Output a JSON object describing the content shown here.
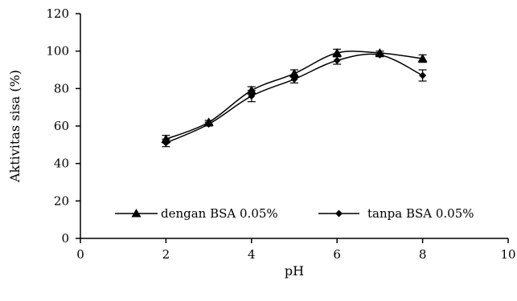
{
  "chart_data": {
    "type": "line",
    "xlabel": "pH",
    "ylabel": "Aktivitas sisa (%)",
    "xlim": [
      0,
      10
    ],
    "ylim": [
      0,
      120
    ],
    "x_ticks": [
      "0",
      "2",
      "4",
      "6",
      "8",
      "10"
    ],
    "y_ticks": [
      "0",
      "20",
      "40",
      "60",
      "80",
      "100",
      "120"
    ],
    "grid": false,
    "legend_position": "bottom",
    "series": [
      {
        "name": "dengan BSA 0.05%",
        "marker": "triangle",
        "color": "#000000",
        "x": [
          2,
          3,
          4,
          5,
          6,
          7,
          8
        ],
        "y": [
          53,
          62,
          79,
          88,
          99,
          99,
          96
        ],
        "error": [
          2,
          1,
          2,
          2,
          2,
          1,
          2
        ]
      },
      {
        "name": "tanpa BSA 0.05%",
        "marker": "diamond",
        "color": "#000000",
        "x": [
          2,
          3,
          4,
          5,
          6,
          7,
          8
        ],
        "y": [
          51,
          61,
          76,
          85,
          95,
          98,
          87
        ],
        "error": [
          2,
          1,
          3,
          2,
          2,
          1,
          3
        ]
      }
    ]
  }
}
